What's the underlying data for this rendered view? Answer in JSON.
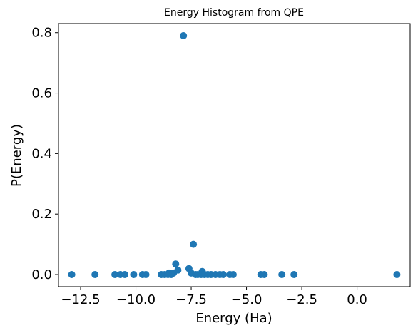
{
  "chart_data": {
    "type": "scatter",
    "title": "Energy Histogram from QPE",
    "xlabel": "Energy (Ha)",
    "ylabel": "P(Energy)",
    "xlim": [
      -13.5,
      2.4
    ],
    "ylim": [
      -0.04,
      0.83
    ],
    "xticks": [
      -12.5,
      -10.0,
      -7.5,
      -5.0,
      -2.5,
      0.0
    ],
    "xtick_labels": [
      "−12.5",
      "−10.0",
      "−7.5",
      "−5.0",
      "−2.5",
      "0.0"
    ],
    "yticks": [
      0.0,
      0.2,
      0.4,
      0.6,
      0.8
    ],
    "ytick_labels": [
      "0.0",
      "0.2",
      "0.4",
      "0.6",
      "0.8"
    ],
    "grid": false,
    "marker_color": "#1f77b4",
    "series": [
      {
        "x": [
          -7.85,
          -7.6,
          -7.5,
          -8.1,
          -8.2,
          -7.0,
          -8.3,
          -7.4,
          -8.5,
          -12.9,
          -11.85,
          -10.95,
          -10.7,
          -10.5,
          -10.1,
          -9.7,
          -9.55,
          -8.85,
          -8.7,
          -8.55,
          -8.4,
          -7.3,
          -7.2,
          -7.05,
          -6.9,
          -6.75,
          -6.6,
          -6.4,
          -6.2,
          -6.05,
          -5.75,
          -5.6,
          -4.35,
          -4.2,
          -3.4,
          -2.85,
          1.8
        ],
        "y": [
          0.79,
          0.02,
          0.005,
          0.015,
          0.035,
          0.01,
          0.005,
          0.1,
          0.005,
          0.0,
          0.0,
          0.0,
          0.0,
          0.0,
          0.0,
          0.0,
          0.0,
          0.0,
          0.0,
          0.0,
          0.0,
          0.0,
          0.0,
          0.0,
          0.0,
          0.0,
          0.0,
          0.0,
          0.0,
          0.0,
          0.0,
          0.0,
          0.0,
          0.0,
          0.0,
          0.0,
          0.0
        ]
      }
    ]
  }
}
